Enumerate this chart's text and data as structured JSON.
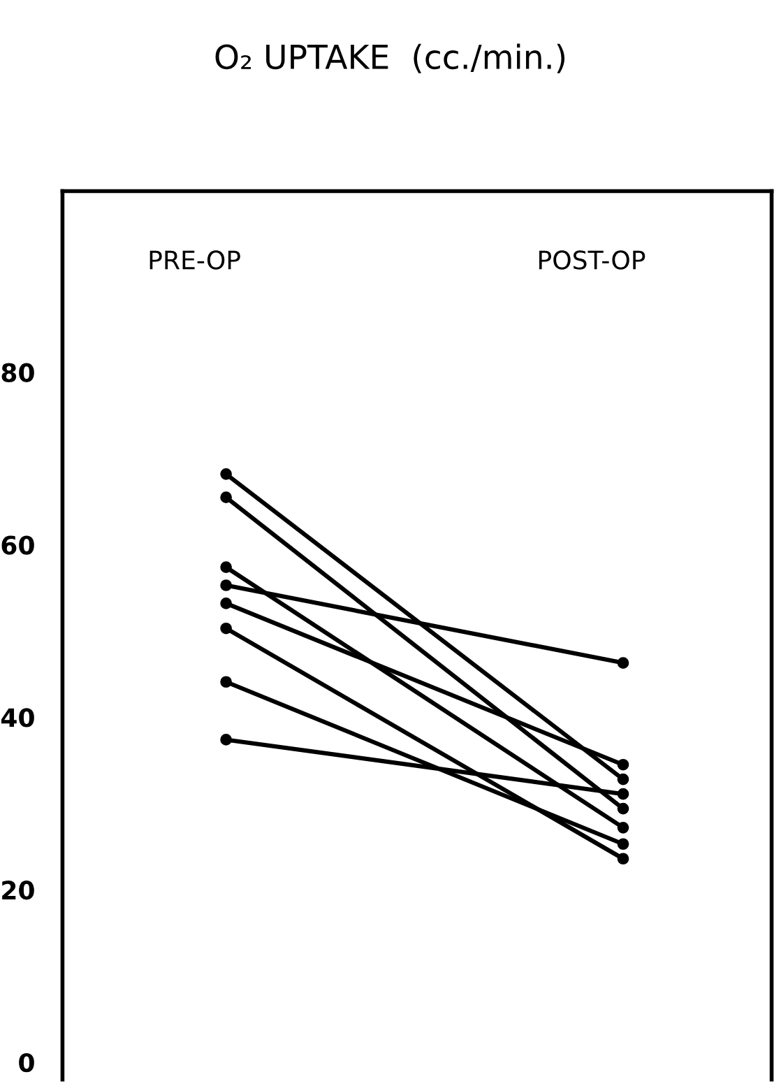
{
  "chart_data": {
    "type": "line",
    "title": "O₂ UPTAKE  (cc./min.)",
    "categories": [
      "PRE-OP",
      "POST-OP"
    ],
    "series": [
      {
        "color": "#000000",
        "values": [
          68.2,
          32.8
        ]
      },
      {
        "color": "#000000",
        "values": [
          65.5,
          29.4
        ]
      },
      {
        "color": "#000000",
        "values": [
          57.4,
          27.2
        ]
      },
      {
        "color": "#000000",
        "values": [
          55.3,
          46.3
        ]
      },
      {
        "color": "#000000",
        "values": [
          53.2,
          34.5
        ]
      },
      {
        "color": "#000000",
        "values": [
          50.3,
          23.6
        ]
      },
      {
        "color": "#000000",
        "values": [
          44.1,
          25.3
        ]
      },
      {
        "color": "#000000",
        "values": [
          37.4,
          31.1
        ]
      }
    ],
    "ylim": [
      -2,
      101
    ],
    "yticks": [
      0,
      20,
      40,
      60,
      80
    ],
    "marker": "circle",
    "line_style": "solid",
    "grid": false,
    "legend": false
  }
}
